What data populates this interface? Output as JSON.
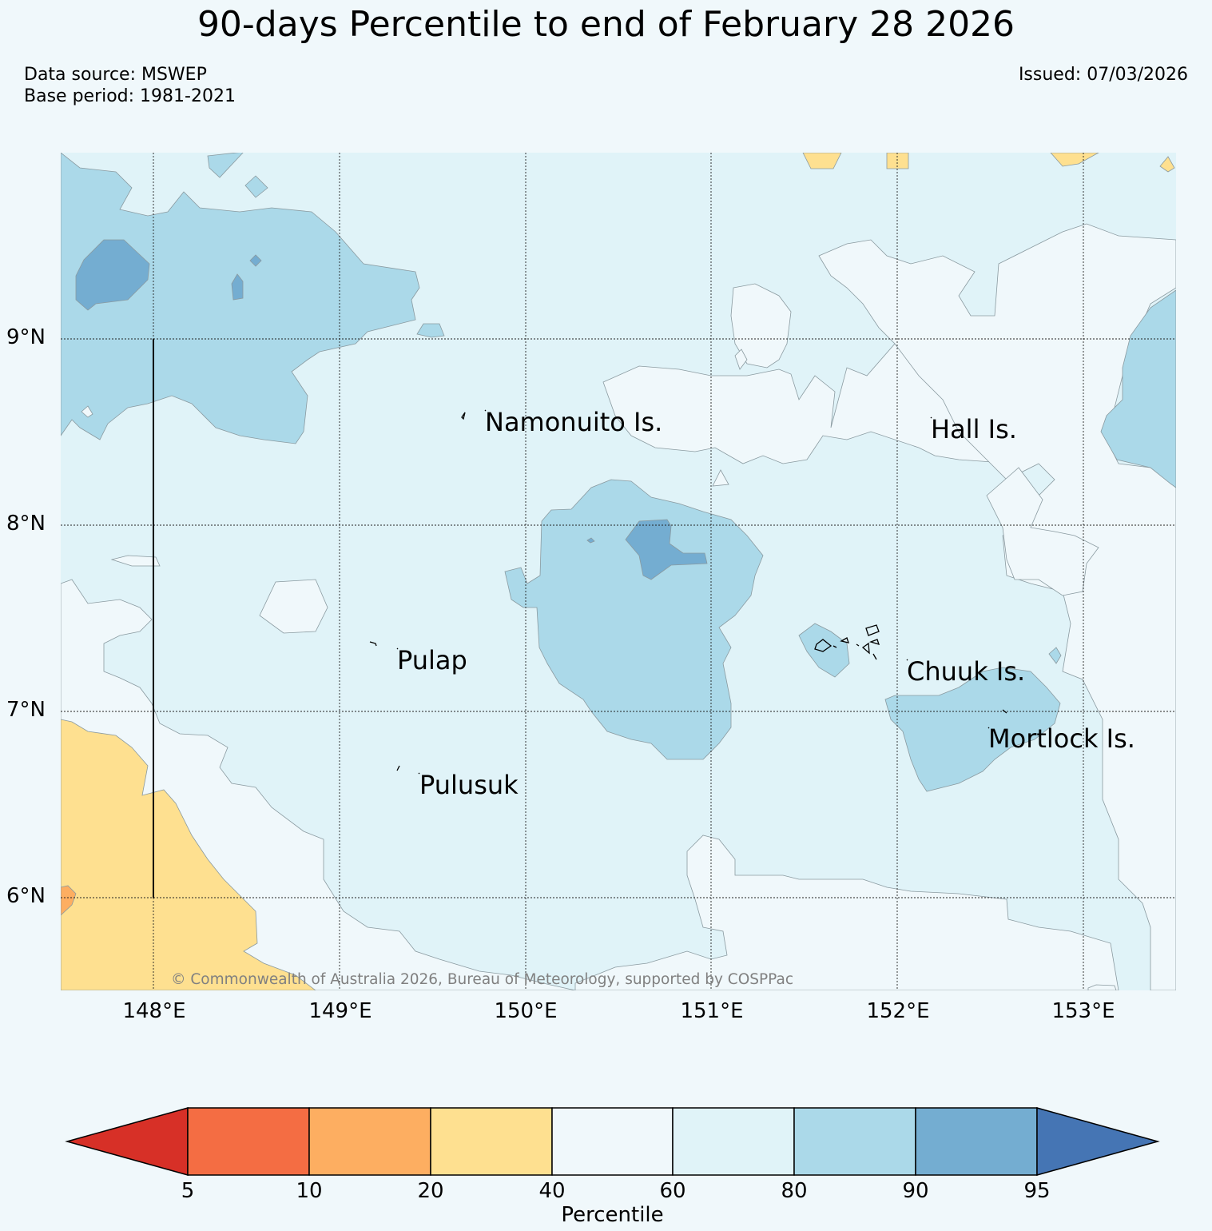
{
  "title": "90-days Percentile to end of February 28 2026",
  "data_source": "Data source: MSWEP",
  "base_period": "Base period: 1981-2021",
  "issued": "Issued: 07/03/2026",
  "copyright": "© Commonwealth of Australia 2026, Bureau of Meteorology, supported by COSPPac",
  "latitudes": [
    "9°N",
    "8°N",
    "7°N",
    "6°N"
  ],
  "longitudes": [
    "148°E",
    "149°E",
    "150°E",
    "151°E",
    "152°E",
    "153°E"
  ],
  "places": {
    "namonuito": "Namonuito Is.",
    "hall": "Hall Is.",
    "pulap": "Pulap",
    "chuuk": "Chuuk Is.",
    "mortlock": "Mortlock Is.",
    "pulusuk": "Pulusuk"
  },
  "colorbar": {
    "label": "Percentile",
    "ticks": [
      "5",
      "10",
      "20",
      "40",
      "60",
      "80",
      "90",
      "95"
    ],
    "colors": {
      "below_5": "#d73027",
      "p5_10": "#f46d43",
      "p10_20": "#fdae61",
      "p20_40": "#fee090",
      "p40_60": "#f0f8fb",
      "p60_80": "#e0f3f8",
      "p80_90": "#abd9e9",
      "p90_95": "#74add1",
      "above_95": "#4575b4"
    }
  }
}
